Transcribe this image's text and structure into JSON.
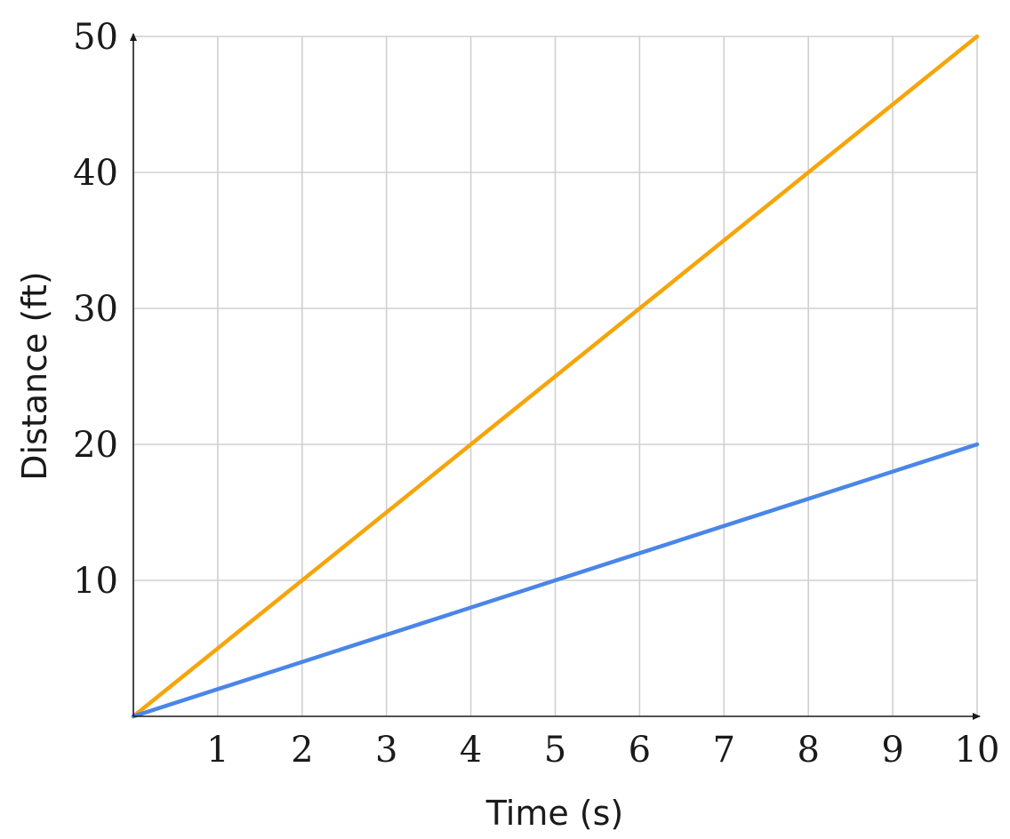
{
  "chart_data": {
    "type": "line",
    "xlabel": "Time (s)",
    "ylabel": "Distance (ft)",
    "xlim": [
      0,
      10
    ],
    "ylim": [
      0,
      50
    ],
    "x_ticks": [
      1,
      2,
      3,
      4,
      5,
      6,
      7,
      8,
      9,
      10
    ],
    "y_ticks": [
      10,
      20,
      30,
      40,
      50
    ],
    "grid": true,
    "series": [
      {
        "color": "#f5a50a",
        "x": [
          0,
          10
        ],
        "y": [
          0,
          50
        ]
      },
      {
        "color": "#4a86e8",
        "x": [
          0,
          10
        ],
        "y": [
          0,
          20
        ]
      }
    ]
  }
}
